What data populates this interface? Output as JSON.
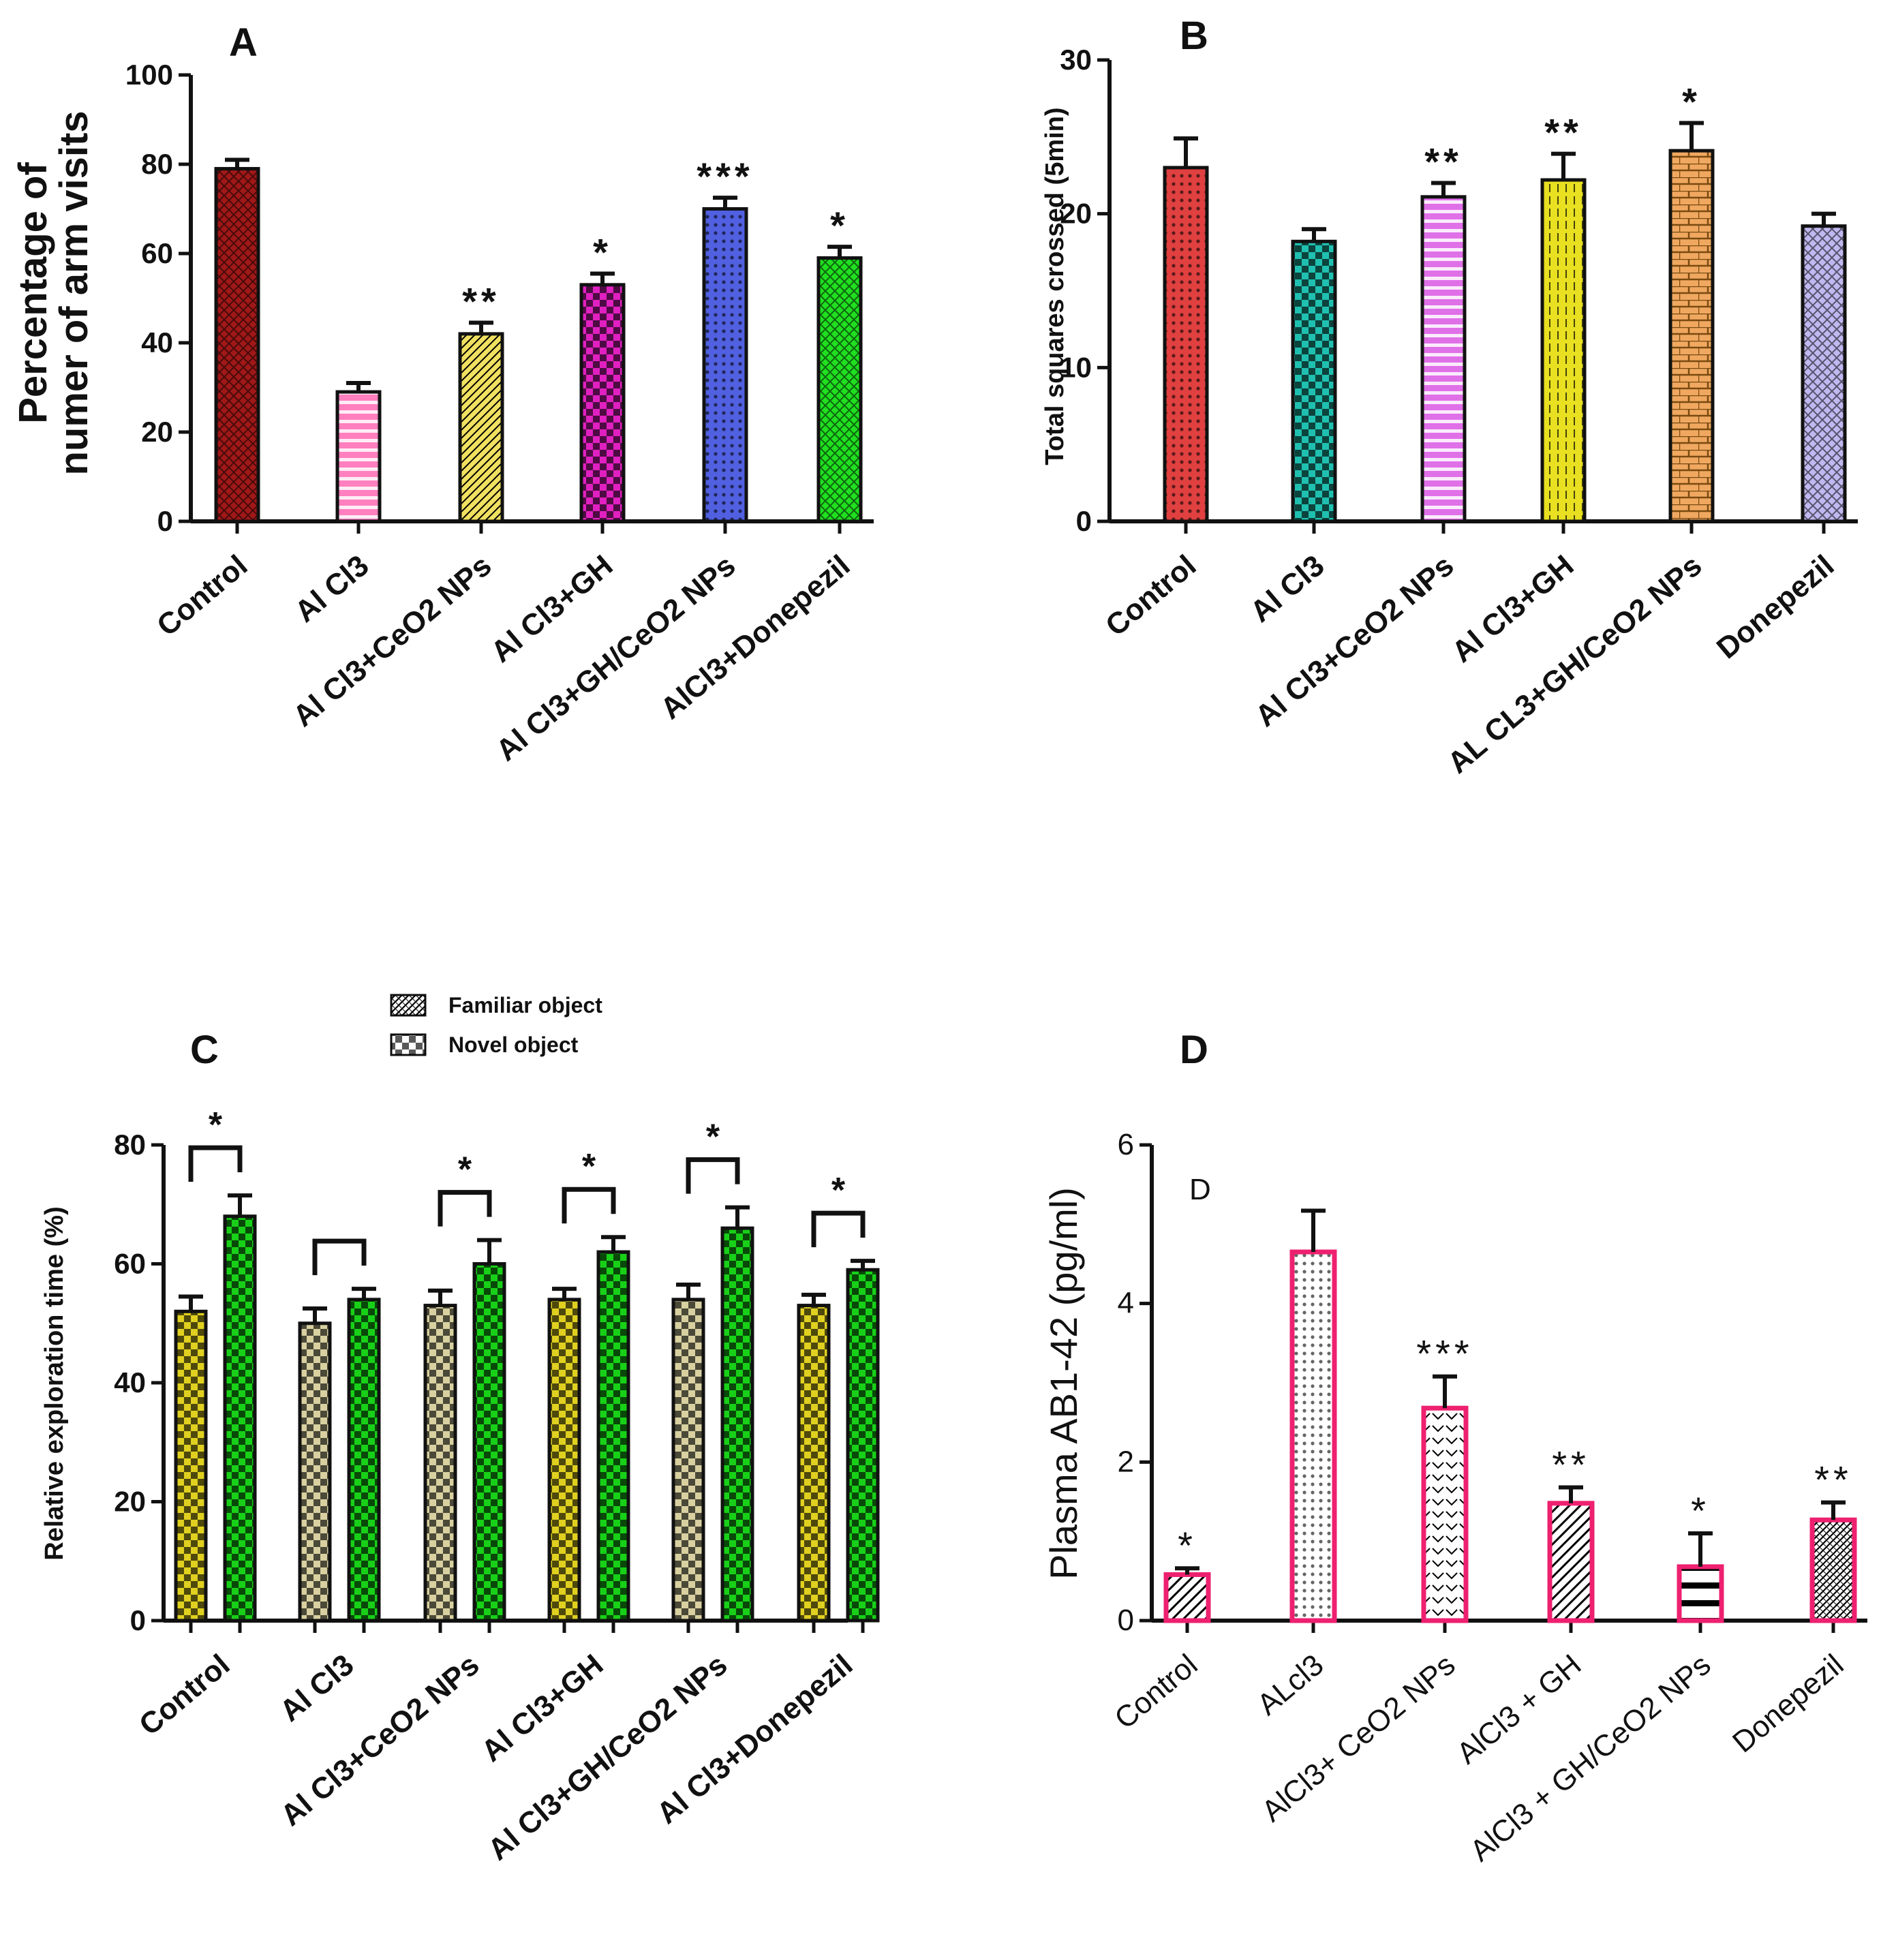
{
  "chart_data": [
    {
      "id": "A",
      "type": "bar",
      "panel_label": "A",
      "ylabel": [
        "Percentage of",
        "numer of arm visits"
      ],
      "ylim": [
        0,
        100
      ],
      "yticks": [
        0,
        20,
        40,
        60,
        80,
        100
      ],
      "grid": false,
      "categories": [
        "Control",
        "Al Cl3",
        "Al Cl3+CeO2 NPs",
        "Al Cl3+GH",
        "Al Cl3+GH/CeO2 NPs",
        "AlCl3+Donepezil"
      ],
      "values": [
        79,
        29,
        42,
        53,
        70,
        59
      ],
      "errors": [
        2,
        2,
        2.5,
        2.5,
        2.5,
        2.5
      ],
      "significance": [
        "",
        "",
        "**",
        "*",
        "***",
        "*"
      ],
      "colors": [
        "#a01818",
        "#ff7fbf",
        "#f0e060",
        "#e020c0",
        "#5060e0",
        "#20e020"
      ]
    },
    {
      "id": "B",
      "type": "bar",
      "panel_label": "B",
      "ylabel": [
        "Total squares crossed (5min)"
      ],
      "ylim": [
        0,
        30
      ],
      "yticks": [
        0,
        10,
        20,
        30
      ],
      "grid": false,
      "categories": [
        "Control",
        "Al Cl3",
        "Al Cl3+CeO2 NPs",
        "Al Cl3+GH",
        "AL CL3+GH/CeO2 NPs",
        "Donepezil"
      ],
      "values": [
        23,
        18.2,
        21.1,
        22.2,
        24.1,
        19.2
      ],
      "errors": [
        1.9,
        0.8,
        0.9,
        1.7,
        1.8,
        0.8
      ],
      "significance": [
        "",
        "",
        "**",
        "**",
        "*",
        ""
      ],
      "colors": [
        "#e04040",
        "#20c0b0",
        "#e070e8",
        "#e8e020",
        "#f0a860",
        "#c0b8f0"
      ]
    },
    {
      "id": "C",
      "type": "bar",
      "panel_label": "C",
      "ylabel": [
        "Relative exploration time (%)"
      ],
      "ylim": [
        0,
        80
      ],
      "yticks": [
        0,
        20,
        40,
        60,
        80
      ],
      "grid": false,
      "legend_position": "top",
      "categories": [
        "Control",
        "Al Cl3",
        "Al Cl3+CeO2 NPs",
        "Al Cl3+GH",
        "Al Cl3+GH/CeO2 NPs",
        "Al Cl3+Donepezil"
      ],
      "series": [
        {
          "name": "Familiar object",
          "values": [
            52,
            50,
            53,
            54,
            54,
            53
          ],
          "errors": [
            2.5,
            2.5,
            2.5,
            1.8,
            2.5,
            1.8
          ],
          "colors": [
            "#e0d020",
            "#d8d0a0",
            "#d8d0a0",
            "#e0d020",
            "#d8d0a0",
            "#e0d020"
          ]
        },
        {
          "name": "Novel object",
          "values": [
            68,
            54,
            60,
            62,
            66,
            59
          ],
          "errors": [
            3.5,
            1.8,
            4,
            2.5,
            3.5,
            1.5
          ],
          "color": "#18d018"
        }
      ],
      "significance": [
        "*",
        "",
        "*",
        "*",
        "*",
        "*"
      ]
    },
    {
      "id": "D",
      "type": "bar",
      "panel_label": "D",
      "inset_label": "D",
      "ylabel": [
        "Plasma AB1-42 (pg/ml)"
      ],
      "ylim": [
        0,
        6
      ],
      "yticks": [
        0,
        2,
        4,
        6
      ],
      "grid": false,
      "categories": [
        "Control",
        "ALcl3",
        "AlCl3+ CeO2 NPs",
        "AlCl3 + GH",
        "AlCl3 + GH/CeO2 NPs",
        "Donepezil"
      ],
      "values": [
        0.58,
        4.65,
        2.68,
        1.48,
        0.68,
        1.27
      ],
      "errors": [
        0.08,
        0.52,
        0.4,
        0.2,
        0.42,
        0.22
      ],
      "significance": [
        "*",
        "",
        "***",
        "**",
        "*",
        "**"
      ],
      "edge_color": "#ee2070"
    }
  ]
}
